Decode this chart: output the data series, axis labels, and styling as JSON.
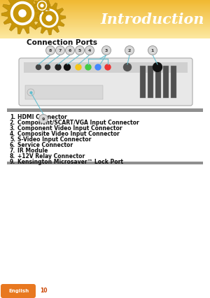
{
  "title": "Introduction",
  "section_title": "Connection Ports",
  "bg_color": "#ffffff",
  "header_top_color": "#f5d070",
  "header_bottom_color": "#f0c040",
  "title_color": "#ffffff",
  "list_items": [
    [
      "1.",
      "HDMI Connector"
    ],
    [
      "2.",
      "Component/SCART/VGA Input Connector"
    ],
    [
      "3.",
      "Component Video Input Connector"
    ],
    [
      "4.",
      "Composite Video Input Connector"
    ],
    [
      "5.",
      "S-Video Input Connector"
    ],
    [
      "6.",
      "Service Connector"
    ],
    [
      "7.",
      "IR Module"
    ],
    [
      "8.",
      "+12V Relay Connector"
    ],
    [
      "9.",
      "Kensington Microsaver™ Lock Port"
    ]
  ],
  "list_bg_top": "#b0b0b0",
  "list_bg_bottom": "#b8b8b8",
  "list_text_color": "#111111",
  "footer_text": "English",
  "footer_number": "10",
  "footer_bg": "#e87820",
  "gear_color": "#c8960a",
  "gear_dark": "#a07808",
  "connector_line_color": "#6ac0d0",
  "connector_circle_color": "#d8d8d8",
  "connector_circle_border": "#999999",
  "connector_numbers": [
    "8",
    "7",
    "6",
    "5",
    "4",
    "3",
    "2",
    "1"
  ],
  "connector_number_9": "9",
  "proj_bg": "#e0e0e0",
  "proj_border": "#aaaaaa",
  "proj_dark": "#c8c8c8"
}
